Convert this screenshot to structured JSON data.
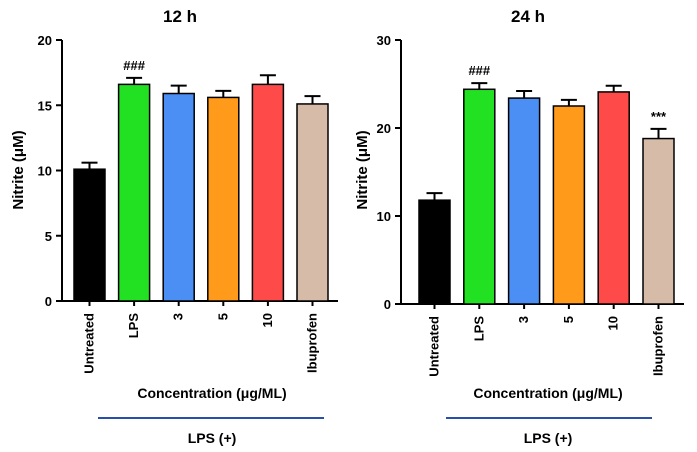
{
  "chart_data": [
    {
      "type": "bar",
      "title": "12 h",
      "ylabel": "Nitrite (μM)",
      "xlabel": "Concentration (μg/ML)",
      "group_label": "LPS (+)",
      "categories": [
        "Untreated",
        "LPS",
        "3",
        "5",
        "10",
        "Ibuprofen"
      ],
      "values": [
        10.1,
        16.6,
        15.9,
        15.6,
        16.6,
        15.1
      ],
      "errors": [
        0.5,
        0.5,
        0.6,
        0.5,
        0.7,
        0.6
      ],
      "colors": [
        "#000000",
        "#22e022",
        "#4b8ff5",
        "#ff9a1a",
        "#ff4a4a",
        "#d6bba8"
      ],
      "ylim": [
        0,
        20
      ],
      "yticks": [
        "0",
        "5",
        "10",
        "15",
        "20"
      ],
      "annotations": [
        {
          "category": "LPS",
          "text": "###"
        }
      ]
    },
    {
      "type": "bar",
      "title": "24 h",
      "ylabel": "Nitrite (μM)",
      "xlabel": "Concentration (μg/ML)",
      "group_label": "LPS (+)",
      "categories": [
        "Untreated",
        "LPS",
        "3",
        "5",
        "10",
        "Ibuprofen"
      ],
      "values": [
        11.8,
        24.4,
        23.4,
        22.5,
        24.1,
        18.8
      ],
      "errors": [
        0.8,
        0.7,
        0.8,
        0.7,
        0.7,
        1.1
      ],
      "colors": [
        "#000000",
        "#22e022",
        "#4b8ff5",
        "#ff9a1a",
        "#ff4a4a",
        "#d6bba8"
      ],
      "ylim": [
        0,
        30
      ],
      "yticks": [
        "0",
        "10",
        "20",
        "30"
      ],
      "annotations": [
        {
          "category": "LPS",
          "text": "###"
        },
        {
          "category": "Ibuprofen",
          "text": "***"
        }
      ]
    }
  ]
}
